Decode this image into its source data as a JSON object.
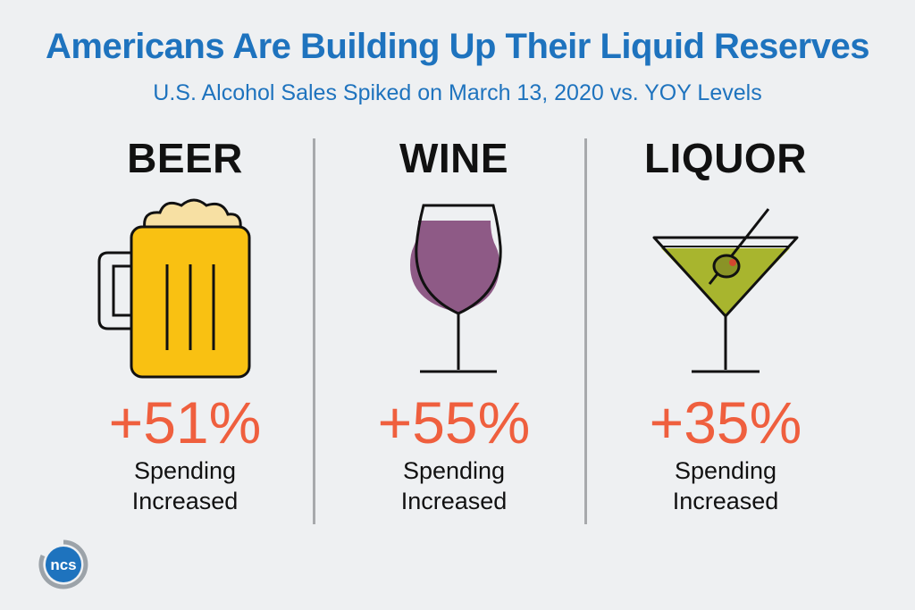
{
  "header": {
    "title": "Americans Are Building Up Their Liquid Reserves",
    "subtitle": "U.S. Alcohol Sales Spiked on March 13, 2020 vs. YOY Levels"
  },
  "categories": [
    {
      "name": "BEER",
      "change": "+51%",
      "line1": "Spending",
      "line2": "Increased",
      "icon": "beer-mug-icon",
      "fill_color": "#f9c112"
    },
    {
      "name": "WINE",
      "change": "+55%",
      "line1": "Spending",
      "line2": "Increased",
      "icon": "wine-glass-icon",
      "fill_color": "#8e5a86"
    },
    {
      "name": "LIQUOR",
      "change": "+35%",
      "line1": "Spending",
      "line2": "Increased",
      "icon": "martini-glass-icon",
      "fill_color": "#a8b52e"
    }
  ],
  "logo": {
    "text": "ncs",
    "icon": "ncs-logo-icon"
  },
  "colors": {
    "title": "#1e73be",
    "accent": "#ef5f3e",
    "divider": "#a7a9ac",
    "background": "#eef0f2"
  }
}
